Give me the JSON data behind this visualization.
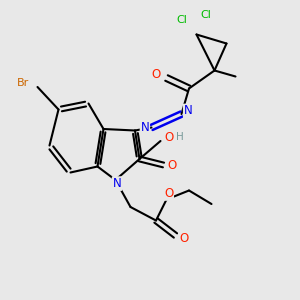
{
  "background_color": "#e8e8e8",
  "bond_color": "#000000",
  "atom_colors": {
    "Br": "#cc6600",
    "Cl": "#00bb00",
    "O": "#ff2200",
    "N": "#0000ee",
    "H": "#779999",
    "C": "#000000"
  },
  "figsize": [
    3.0,
    3.0
  ],
  "dpi": 100,
  "xlim": [
    0.0,
    10.0
  ],
  "ylim": [
    0.0,
    10.0
  ]
}
